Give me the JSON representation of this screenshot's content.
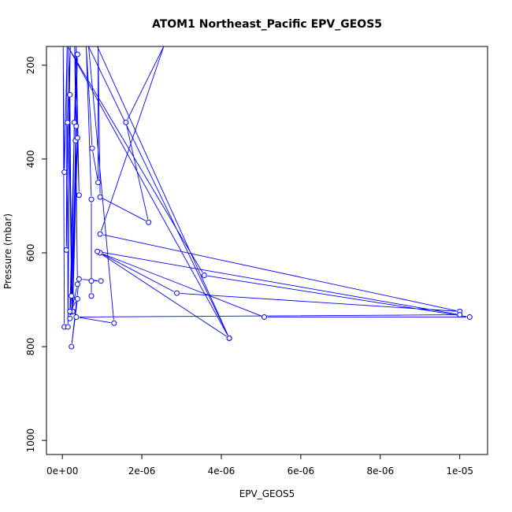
{
  "chart_data": {
    "type": "line",
    "title": "ATOM1 Northeast_Pacific EPV_GEOS5",
    "xlabel": "EPV_GEOS5",
    "ylabel": "Pressure (mbar)",
    "xlim": [
      -4e-07,
      1.07e-05
    ],
    "ylim": [
      1030,
      160
    ],
    "y_inverted": true,
    "x_ticks": [
      0,
      2e-06,
      4e-06,
      6e-06,
      8e-06,
      1e-05
    ],
    "x_tick_labels": [
      "0e+00",
      "2e-06",
      "4e-06",
      "6e-06",
      "8e-06",
      "1e-05"
    ],
    "y_ticks": [
      200,
      400,
      600,
      800,
      1000
    ],
    "y_tick_labels": [
      "200",
      "400",
      "600",
      "800",
      "1000"
    ],
    "grid": false,
    "series": [
      {
        "color": "#0000ff",
        "points": [
          {
            "x": 5e-08,
            "y": 758
          },
          {
            "x": 2e-08,
            "y": 160,
            "marker": false
          },
          {
            "x": 5e-08,
            "y": 428
          },
          {
            "x": 1.2e-07,
            "y": 160,
            "marker": false
          },
          {
            "x": 1e-07,
            "y": 594
          },
          {
            "x": 2e-07,
            "y": 160,
            "marker": false
          },
          {
            "x": 1.3e-07,
            "y": 322
          },
          {
            "x": 1.4e-07,
            "y": 758
          },
          {
            "x": 1.9e-07,
            "y": 263
          },
          {
            "x": 2.3e-07,
            "y": 692
          },
          {
            "x": 1.5e-07,
            "y": 160,
            "marker": false
          },
          {
            "x": 2.6e-07,
            "y": 725
          },
          {
            "x": 3.3e-07,
            "y": 361
          },
          {
            "x": 3.8e-07,
            "y": 177
          },
          {
            "x": 3e-07,
            "y": 322
          },
          {
            "x": 2.3e-07,
            "y": 725
          },
          {
            "x": 3.5e-07,
            "y": 330
          },
          {
            "x": 2.6e-07,
            "y": 725
          },
          {
            "x": 3.8e-07,
            "y": 355
          },
          {
            "x": 1.9e-07,
            "y": 740
          },
          {
            "x": 3.8e-07,
            "y": 667
          },
          {
            "x": 3.1e-07,
            "y": 160,
            "marker": false
          },
          {
            "x": 4.2e-07,
            "y": 477
          },
          {
            "x": 3.5e-07,
            "y": 160,
            "marker": false
          },
          {
            "x": 1.9e-07,
            "y": 725
          },
          {
            "x": 3.8e-07,
            "y": 698
          },
          {
            "x": 2.3e-07,
            "y": 800
          },
          {
            "x": 4.2e-07,
            "y": 656
          },
          {
            "x": 9.7e-07,
            "y": 660
          },
          {
            "x": 7.3e-07,
            "y": 660
          },
          {
            "x": 7.3e-07,
            "y": 692
          },
          {
            "x": 7.3e-07,
            "y": 486
          },
          {
            "x": 6e-07,
            "y": 160,
            "marker": false
          },
          {
            "x": 7.5e-07,
            "y": 377
          },
          {
            "x": 9e-07,
            "y": 450
          },
          {
            "x": 9e-07,
            "y": 160,
            "marker": false
          },
          {
            "x": 9.5e-07,
            "y": 481
          },
          {
            "x": 2.17e-06,
            "y": 535
          },
          {
            "x": 1.6e-06,
            "y": 322
          },
          {
            "x": 2.55e-06,
            "y": 160,
            "marker": false
          },
          {
            "x": 9.5e-07,
            "y": 560
          },
          {
            "x": 1e-05,
            "y": 725
          },
          {
            "x": 2.88e-06,
            "y": 686
          },
          {
            "x": 9.5e-07,
            "y": 600
          },
          {
            "x": 5.08e-06,
            "y": 737
          },
          {
            "x": 1.025e-05,
            "y": 737
          },
          {
            "x": 3.57e-06,
            "y": 648
          },
          {
            "x": 1.4e-07,
            "y": 160,
            "marker": false
          },
          {
            "x": 4.2e-06,
            "y": 782
          },
          {
            "x": 8.8e-07,
            "y": 597
          },
          {
            "x": 1e-05,
            "y": 732
          },
          {
            "x": 3.5e-07,
            "y": 737
          },
          {
            "x": 1.3e-06,
            "y": 750
          },
          {
            "x": 6.6e-07,
            "y": 160,
            "marker": false
          },
          {
            "x": 4.2e-06,
            "y": 782
          },
          {
            "x": 8.8e-07,
            "y": 160,
            "marker": false
          }
        ]
      }
    ]
  }
}
